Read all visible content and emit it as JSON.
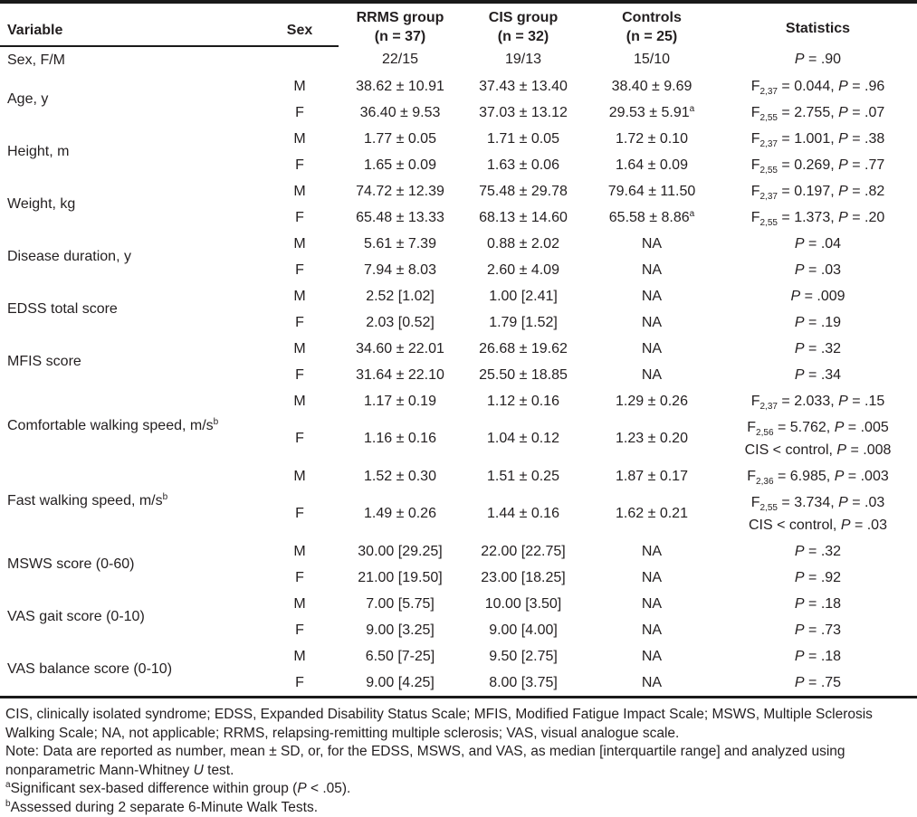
{
  "colors": {
    "text": "#231f20",
    "rule": "#1a1a1a",
    "background": "#ffffff"
  },
  "table": {
    "header": {
      "variable": "Variable",
      "sex": "Sex",
      "groups": [
        {
          "line1": "RRMS group",
          "line2": "(n = 37)"
        },
        {
          "line1": "CIS group",
          "line2": "(n = 32)"
        },
        {
          "line1": "Controls",
          "line2": "(n = 25)"
        }
      ],
      "statistics": "Statistics"
    },
    "groups": [
      {
        "variable": "Sex, F/M",
        "rows": [
          {
            "sex": "",
            "rrms": "22/15",
            "cis": "19/13",
            "controls": "15/10",
            "stats": [
              "*P* = .90"
            ]
          }
        ]
      },
      {
        "variable": "Age, y",
        "rows": [
          {
            "sex": "M",
            "rrms": "38.62 ± 10.91",
            "cis": "37.43 ± 13.40",
            "controls": "38.40 ± 9.69",
            "stats": [
              "F_{2,37} = 0.044, *P* = .96"
            ]
          },
          {
            "sex": "F",
            "rrms": "36.40 ± 9.53",
            "cis": "37.03 ± 13.12",
            "controls": "29.53 ± 5.91^{a}",
            "stats": [
              "F_{2,55} = 2.755, *P* = .07"
            ]
          }
        ]
      },
      {
        "variable": "Height, m",
        "rows": [
          {
            "sex": "M",
            "rrms": "1.77 ± 0.05",
            "cis": "1.71 ± 0.05",
            "controls": "1.72 ± 0.10",
            "stats": [
              "F_{2,37} = 1.001, *P* = .38"
            ]
          },
          {
            "sex": "F",
            "rrms": "1.65 ± 0.09",
            "cis": "1.63 ± 0.06",
            "controls": "1.64 ± 0.09",
            "stats": [
              "F_{2,55} = 0.269, *P* = .77"
            ]
          }
        ]
      },
      {
        "variable": "Weight, kg",
        "rows": [
          {
            "sex": "M",
            "rrms": "74.72 ± 12.39",
            "cis": "75.48 ± 29.78",
            "controls": "79.64 ± 11.50",
            "stats": [
              "F_{2,37} = 0.197, *P* = .82"
            ]
          },
          {
            "sex": "F",
            "rrms": "65.48 ± 13.33",
            "cis": "68.13 ± 14.60",
            "controls": "65.58 ± 8.86^{a}",
            "stats": [
              "F_{2,55} = 1.373, *P* = .20"
            ]
          }
        ]
      },
      {
        "variable": "Disease duration, y",
        "rows": [
          {
            "sex": "M",
            "rrms": "5.61 ± 7.39",
            "cis": "0.88 ± 2.02",
            "controls": "NA",
            "stats": [
              "*P* = .04"
            ]
          },
          {
            "sex": "F",
            "rrms": "7.94 ± 8.03",
            "cis": "2.60 ± 4.09",
            "controls": "NA",
            "stats": [
              "*P* = .03"
            ]
          }
        ]
      },
      {
        "variable": "EDSS total score",
        "rows": [
          {
            "sex": "M",
            "rrms": "2.52 [1.02]",
            "cis": "1.00 [2.41]",
            "controls": "NA",
            "stats": [
              "*P* = .009"
            ]
          },
          {
            "sex": "F",
            "rrms": "2.03 [0.52]",
            "cis": "1.79 [1.52]",
            "controls": "NA",
            "stats": [
              "*P* = .19"
            ]
          }
        ]
      },
      {
        "variable": "MFIS score",
        "rows": [
          {
            "sex": "M",
            "rrms": "34.60 ± 22.01",
            "cis": "26.68 ± 19.62",
            "controls": "NA",
            "stats": [
              "*P* = .32"
            ]
          },
          {
            "sex": "F",
            "rrms": "31.64 ± 22.10",
            "cis": "25.50 ± 18.85",
            "controls": "NA",
            "stats": [
              "*P* = .34"
            ]
          }
        ]
      },
      {
        "variable": "Comfortable walking speed, m/s^{b}",
        "rows": [
          {
            "sex": "M",
            "rrms": "1.17 ± 0.19",
            "cis": "1.12 ± 0.16",
            "controls": "1.29 ± 0.26",
            "stats": [
              "F_{2,37} = 2.033, *P* = .15"
            ]
          },
          {
            "sex": "F",
            "rrms": "1.16 ± 0.16",
            "cis": "1.04 ± 0.12",
            "controls": "1.23 ± 0.20",
            "stats": [
              "F_{2,56} = 5.762, *P* = .005",
              "CIS < control, *P* = .008"
            ]
          }
        ]
      },
      {
        "variable": "Fast walking speed, m/s^{b}",
        "rows": [
          {
            "sex": "M",
            "rrms": "1.52 ± 0.30",
            "cis": "1.51 ± 0.25",
            "controls": "1.87 ± 0.17",
            "stats": [
              "F_{2,36} = 6.985, *P* = .003"
            ]
          },
          {
            "sex": "F",
            "rrms": "1.49 ± 0.26",
            "cis": "1.44 ± 0.16",
            "controls": "1.62 ± 0.21",
            "stats": [
              "F_{2,55} = 3.734, *P* = .03",
              "CIS < control, *P* = .03"
            ]
          }
        ]
      },
      {
        "variable": "MSWS score (0-60)",
        "rows": [
          {
            "sex": "M",
            "rrms": "30.00 [29.25]",
            "cis": "22.00 [22.75]",
            "controls": "NA",
            "stats": [
              "*P* = .32"
            ]
          },
          {
            "sex": "F",
            "rrms": "21.00 [19.50]",
            "cis": "23.00 [18.25]",
            "controls": "NA",
            "stats": [
              "*P* = .92"
            ]
          }
        ]
      },
      {
        "variable": "VAS gait score (0-10)",
        "rows": [
          {
            "sex": "M",
            "rrms": "7.00 [5.75]",
            "cis": "10.00 [3.50]",
            "controls": "NA",
            "stats": [
              "*P* = .18"
            ]
          },
          {
            "sex": "F",
            "rrms": "9.00 [3.25]",
            "cis": "9.00 [4.00]",
            "controls": "NA",
            "stats": [
              "*P* = .73"
            ]
          }
        ]
      },
      {
        "variable": "VAS balance score (0-10)",
        "rows": [
          {
            "sex": "M",
            "rrms": "6.50 [7-25]",
            "cis": "9.50 [2.75]",
            "controls": "NA",
            "stats": [
              "*P* = .18"
            ]
          },
          {
            "sex": "F",
            "rrms": "9.00 [4.25]",
            "cis": "8.00 [3.75]",
            "controls": "NA",
            "stats": [
              "*P* = .75"
            ]
          }
        ]
      }
    ]
  },
  "footnotes": [
    "CIS, clinically isolated syndrome; EDSS, Expanded Disability Status Scale; MFIS, Modified Fatigue Impact Scale; MSWS, Multiple Sclerosis",
    "Walking Scale; NA, not applicable; RRMS, relapsing-remitting multiple sclerosis; VAS, visual analogue scale.",
    "Note: Data are reported as number, mean ± SD, or, for the EDSS, MSWS, and VAS, as median [interquartile range] and analyzed using",
    "nonparametric Mann-Whitney *U* test.",
    "^{a}Significant sex-based difference within group (*P* < .05).",
    "^{b}Assessed during 2 separate 6-Minute Walk Tests."
  ]
}
